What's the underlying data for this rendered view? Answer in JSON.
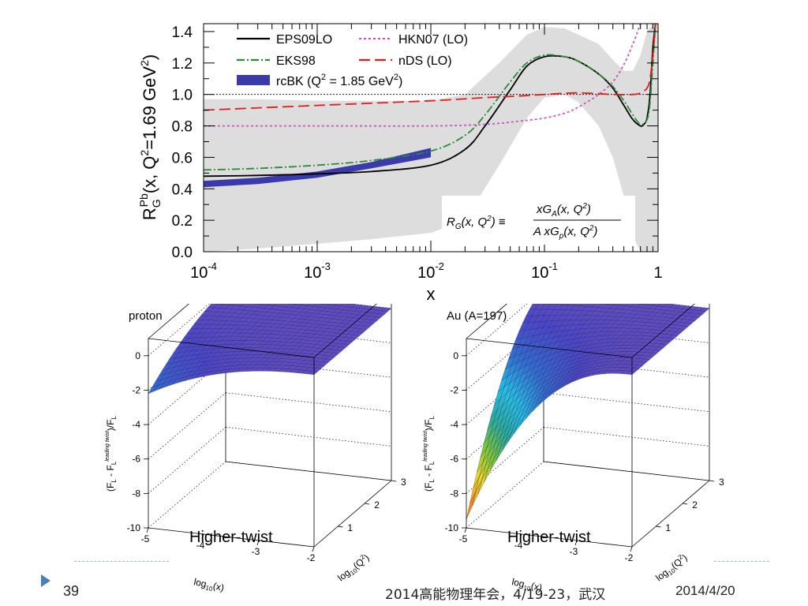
{
  "slide": {
    "page_number": "39",
    "conference": "2014高能物理年会，4/19-23，武汉",
    "date": "2014/4/20"
  },
  "chart_data": [
    {
      "type": "line",
      "ylabel": "R_G^Pb(x, Q²=1.69 GeV²)",
      "ylabel_main": "R",
      "ylabel_sub": "G",
      "ylabel_sup": "Pb",
      "ylabel_rest": "(x, Q",
      "ylabel_sup2": "2",
      "ylabel_rest2": "=1.69 GeV",
      "ylabel_sup3": "2",
      "ylabel_end": ")",
      "xlabel": "x",
      "xscale": "log",
      "xlim": [
        0.0001,
        1
      ],
      "ylim": [
        0.0,
        1.45
      ],
      "xticks": [
        {
          "base": "10",
          "exp": "-4",
          "value": 0.0001
        },
        {
          "base": "10",
          "exp": "-3",
          "value": 0.001
        },
        {
          "base": "10",
          "exp": "-2",
          "value": 0.01
        },
        {
          "base": "10",
          "exp": "-1",
          "value": 0.1
        },
        {
          "base": "1",
          "exp": "",
          "value": 1
        }
      ],
      "yticks": [
        "0.0",
        "0.2",
        "0.4",
        "0.6",
        "0.8",
        "1.0",
        "1.2",
        "1.4"
      ],
      "reference_line": 1.0,
      "formula": "R_G(x, Q²) ≡ xG_A(x, Q²) / A xG_p(x, Q²)",
      "formula_lhs": "R",
      "formula_lhs_sub": "G",
      "formula_lhs_args": "(x, Q",
      "formula_lhs_end": ") ≡",
      "formula_num": "xG",
      "formula_num_sub": "A",
      "formula_num_args": "(x, Q",
      "formula_num_end": ")",
      "formula_den": "A xG",
      "formula_den_sub": "p",
      "formula_den_args": "(x, Q",
      "formula_den_end": ")",
      "formula_sq": "2",
      "band": {
        "color": "#dddddd",
        "x": [
          0.0001,
          0.0003,
          0.001,
          0.003,
          0.01,
          0.02,
          0.04,
          0.07,
          0.1,
          0.15,
          0.2,
          0.3,
          0.4,
          0.5,
          0.6,
          0.7,
          0.8,
          0.9,
          1.0
        ],
        "upper": [
          0.97,
          0.97,
          0.96,
          0.96,
          0.96,
          1.0,
          1.2,
          1.38,
          1.43,
          1.42,
          1.38,
          1.32,
          1.22,
          1.15,
          1.15,
          1.25,
          1.4,
          1.45,
          1.45
        ],
        "lower": [
          0.0,
          0.02,
          0.05,
          0.08,
          0.12,
          0.2,
          0.55,
          0.85,
          0.98,
          1.0,
          0.95,
          0.8,
          0.6,
          0.35,
          0.1,
          0.0,
          0.0,
          0.0,
          0.0
        ]
      },
      "series": [
        {
          "name": "EPS09LO",
          "color": "#000000",
          "dash": "",
          "width": 1.8,
          "x": [
            0.0001,
            0.0003,
            0.001,
            0.003,
            0.01,
            0.02,
            0.03,
            0.05,
            0.07,
            0.1,
            0.15,
            0.2,
            0.3,
            0.4,
            0.5,
            0.6,
            0.7,
            0.75,
            0.8,
            0.85,
            0.9,
            0.95
          ],
          "y": [
            0.48,
            0.485,
            0.495,
            0.51,
            0.55,
            0.65,
            0.8,
            1.03,
            1.18,
            1.24,
            1.24,
            1.21,
            1.13,
            1.04,
            0.93,
            0.84,
            0.8,
            0.81,
            0.85,
            1.0,
            1.3,
            1.45
          ]
        },
        {
          "name": "EKS98",
          "color": "#2a8a3a",
          "dash": "10,3,2,3",
          "width": 1.8,
          "x": [
            0.0001,
            0.0003,
            0.001,
            0.003,
            0.01,
            0.02,
            0.03,
            0.05,
            0.07,
            0.1,
            0.15,
            0.2,
            0.3,
            0.4,
            0.5,
            0.6,
            0.7,
            0.8,
            0.85,
            0.9,
            0.95
          ],
          "y": [
            0.52,
            0.53,
            0.55,
            0.58,
            0.64,
            0.74,
            0.87,
            1.08,
            1.2,
            1.25,
            1.24,
            1.21,
            1.13,
            1.05,
            0.96,
            0.87,
            0.81,
            0.84,
            0.95,
            1.2,
            1.45
          ]
        },
        {
          "name": "HKN07 (LO)",
          "color": "#cc55bb",
          "dash": "3,3",
          "width": 1.8,
          "x": [
            0.0001,
            0.001,
            0.01,
            0.03,
            0.06,
            0.1,
            0.15,
            0.2,
            0.3,
            0.4,
            0.5,
            0.6,
            0.7
          ],
          "y": [
            0.8,
            0.8,
            0.8,
            0.81,
            0.83,
            0.85,
            0.88,
            0.92,
            1.0,
            1.08,
            1.19,
            1.32,
            1.45
          ]
        },
        {
          "name": "nDS (LO)",
          "color": "#dd1f1f",
          "dash": "14,6",
          "width": 1.8,
          "x": [
            0.0001,
            0.001,
            0.01,
            0.03,
            0.06,
            0.1,
            0.2,
            0.4,
            0.6,
            0.7,
            0.8,
            0.85,
            0.9,
            0.95
          ],
          "y": [
            0.9,
            0.93,
            0.96,
            0.98,
            0.99,
            1.0,
            1.01,
            1.0,
            1.0,
            1.01,
            1.04,
            1.1,
            1.25,
            1.45
          ]
        }
      ],
      "rcbk": {
        "name": "rcBK (Q² = 1.85 GeV²)",
        "legend_main": "rcBK (Q",
        "legend_sup": "2",
        "legend_mid": " = 1.85 GeV",
        "legend_sup2": "2",
        "legend_end": ")",
        "color": "#3a3aaa",
        "x": [
          0.0001,
          0.0003,
          0.001,
          0.003,
          0.01
        ],
        "upper": [
          0.45,
          0.47,
          0.51,
          0.57,
          0.66
        ],
        "lower": [
          0.41,
          0.43,
          0.47,
          0.53,
          0.6
        ]
      }
    },
    {
      "type": "surface",
      "title": "proton",
      "overlay_label": "Higher-twist",
      "zlabel": "(F_L - F_L^leading twist)/F_L",
      "zlabel_a": "(F",
      "zlabel_a_sub": "L",
      "zlabel_b": " - F",
      "zlabel_b_sub": "L",
      "zlabel_b_sup": "leading twist",
      "zlabel_c": ")/F",
      "zlabel_c_sub": "L",
      "xlabel": "log10(x)",
      "xlabel_a": "log",
      "xlabel_sub": "10",
      "xlabel_b": "(x)",
      "ylabel": "log10(Q²)",
      "ylabel_a": "log",
      "ylabel_sub": "10",
      "ylabel_b": "(Q",
      "ylabel_sup": "2",
      "ylabel_c": ")",
      "zticks": [
        "0",
        "-2",
        "-4",
        "-6",
        "-8",
        "-10"
      ],
      "xticks": [
        "-5",
        "-4",
        "-3",
        "-2"
      ],
      "yticks": [
        "1",
        "2",
        "3"
      ],
      "zlim": [
        -10,
        1
      ],
      "min_value": -2.2
    },
    {
      "type": "surface",
      "title": "Au (A=197)",
      "overlay_label": "Higher-twist",
      "zlabel": "(F_L - F_L^leading twist)/F_L",
      "zlabel_a": "(F",
      "zlabel_a_sub": "L",
      "zlabel_b": " - F",
      "zlabel_b_sub": "L",
      "zlabel_b_sup": "leading twist",
      "zlabel_c": ")/F",
      "zlabel_c_sub": "L",
      "xlabel": "log10(x)",
      "xlabel_a": "log",
      "xlabel_sub": "10",
      "xlabel_b": "(x)",
      "ylabel": "log10(Q²)",
      "ylabel_a": "log",
      "ylabel_sub": "10",
      "ylabel_b": "(Q",
      "ylabel_sup": "2",
      "ylabel_c": ")",
      "zticks": [
        "0",
        "-2",
        "-4",
        "-6",
        "-8",
        "-10"
      ],
      "xticks": [
        "-5",
        "-4",
        "-3",
        "-2"
      ],
      "yticks": [
        "1",
        "2",
        "3"
      ],
      "zlim": [
        -10,
        1
      ],
      "min_value": -9.5
    }
  ]
}
